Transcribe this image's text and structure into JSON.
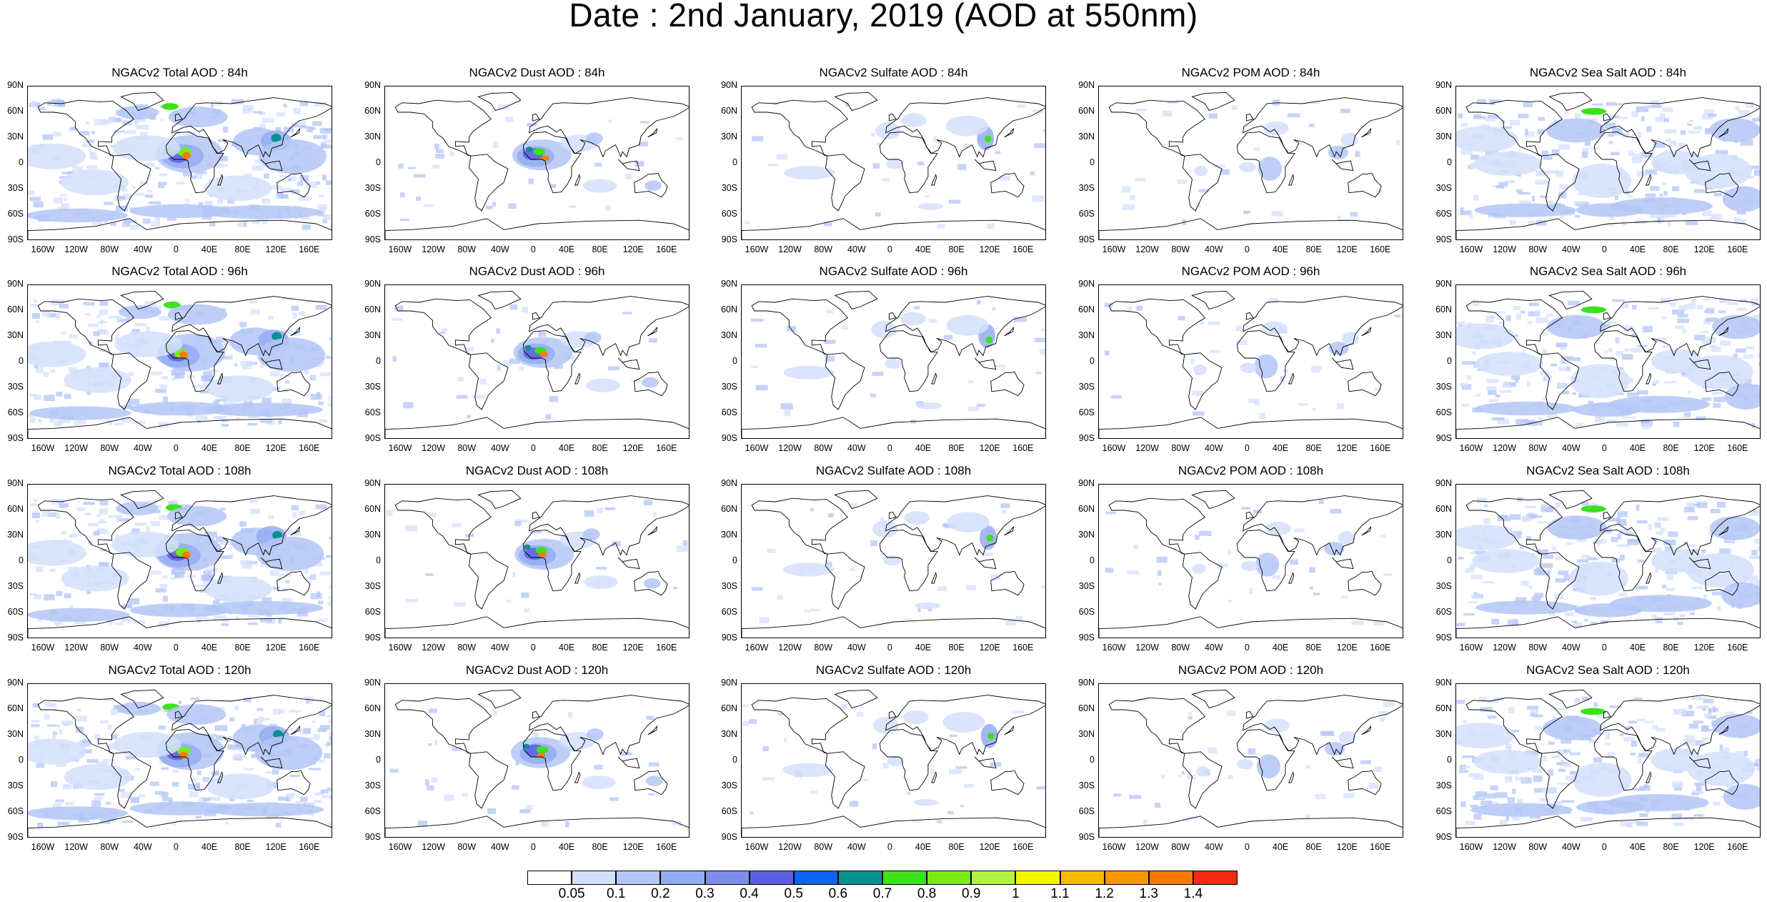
{
  "title": "Date : 2nd January, 2019 (AOD at 550nm)",
  "lat_labels": [
    "90N",
    "60N",
    "30N",
    "0",
    "30S",
    "60S",
    "90S"
  ],
  "lon_labels": [
    "160W",
    "120W",
    "80W",
    "40W",
    "0",
    "40E",
    "80E",
    "120E",
    "160E"
  ],
  "panels": [
    {
      "title": "NGACv2 Total AOD : 84h",
      "species": "total"
    },
    {
      "title": "NGACv2 Dust AOD : 84h",
      "species": "dust"
    },
    {
      "title": "NGACv2 Sulfate AOD : 84h",
      "species": "sulfate"
    },
    {
      "title": "NGACv2 POM AOD : 84h",
      "species": "pom"
    },
    {
      "title": "NGACv2 Sea Salt AOD : 84h",
      "species": "seasalt"
    },
    {
      "title": "NGACv2 Total AOD : 96h",
      "species": "total"
    },
    {
      "title": "NGACv2 Dust AOD : 96h",
      "species": "dust"
    },
    {
      "title": "NGACv2 Sulfate AOD : 96h",
      "species": "sulfate"
    },
    {
      "title": "NGACv2 POM AOD : 96h",
      "species": "pom"
    },
    {
      "title": "NGACv2 Sea Salt AOD : 96h",
      "species": "seasalt"
    },
    {
      "title": "NGACv2 Total AOD : 108h",
      "species": "total"
    },
    {
      "title": "NGACv2 Dust AOD : 108h",
      "species": "dust"
    },
    {
      "title": "NGACv2 Sulfate AOD : 108h",
      "species": "sulfate"
    },
    {
      "title": "NGACv2 POM AOD : 108h",
      "species": "pom"
    },
    {
      "title": "NGACv2 Sea Salt AOD : 108h",
      "species": "seasalt"
    },
    {
      "title": "NGACv2 Total AOD : 120h",
      "species": "total"
    },
    {
      "title": "NGACv2 Dust AOD : 120h",
      "species": "dust"
    },
    {
      "title": "NGACv2 Sulfate AOD : 120h",
      "species": "sulfate"
    },
    {
      "title": "NGACv2 POM AOD : 120h",
      "species": "pom"
    },
    {
      "title": "NGACv2 Sea Salt  AOD : 120h",
      "species": "seasalt"
    }
  ],
  "colorbar": {
    "labels": [
      "0.05",
      "0.1",
      "0.2",
      "0.3",
      "0.4",
      "0.5",
      "0.6",
      "0.7",
      "0.8",
      "0.9",
      "1",
      "1.1",
      "1.2",
      "1.3",
      "1.4"
    ],
    "colors": [
      "#ffffff",
      "#d4e0fb",
      "#b3c6f6",
      "#94acf1",
      "#7c8ee9",
      "#5e5fe0",
      "#0d63f2",
      "#0a8f8f",
      "#3ce11b",
      "#79ec12",
      "#b3f245",
      "#f5f500",
      "#f5bb00",
      "#f59800",
      "#f57a00",
      "#f42a12"
    ]
  }
}
